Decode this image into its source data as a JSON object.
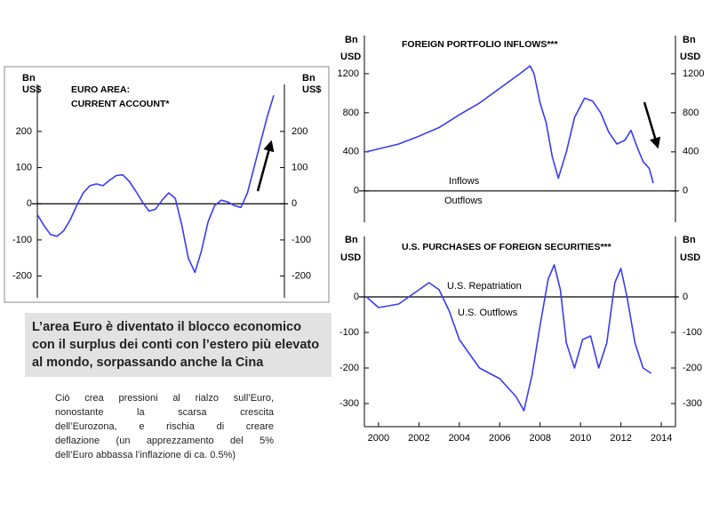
{
  "chart_data": [
    {
      "type": "line",
      "title": "EURO AREA:",
      "subtitle": "CURRENT ACCOUNT*",
      "y_unit": [
        "Bn",
        "US$"
      ],
      "categories": [
        null,
        null,
        null,
        null,
        null,
        null,
        null,
        null,
        null,
        null,
        null,
        null,
        null,
        null,
        null,
        null,
        null,
        null,
        null,
        null,
        null,
        null,
        null,
        null,
        null,
        null,
        null,
        null,
        null,
        null,
        null,
        null,
        null,
        null,
        null,
        null,
        null
      ],
      "values": [
        -30,
        -60,
        -85,
        -90,
        -75,
        -45,
        -5,
        30,
        50,
        55,
        50,
        65,
        78,
        80,
        62,
        35,
        5,
        -20,
        -15,
        10,
        30,
        15,
        -60,
        -150,
        -190,
        -130,
        -50,
        -5,
        10,
        5,
        -5,
        -10,
        30,
        100,
        170,
        240,
        300
      ],
      "color": "#3b3bf2",
      "ylim": [
        -260,
        330
      ],
      "yticks": [
        -200,
        -100,
        0,
        100,
        200
      ]
    },
    {
      "type": "line",
      "title": "FOREIGN PORTFOLIO INFLOWS***",
      "y_unit": [
        "Bn",
        "USD"
      ],
      "annotations": [
        "Inflows",
        "Outflows"
      ],
      "x": [
        1999.4,
        2000,
        2001,
        2002,
        2003,
        2004,
        2005,
        2006,
        2007,
        2007.5,
        2007.7,
        2008,
        2008.3,
        2008.6,
        2008.9,
        2009.3,
        2009.7,
        2010.2,
        2010.6,
        2011,
        2011.4,
        2011.8,
        2012.2,
        2012.5,
        2012.8,
        2013.1,
        2013.4,
        2013.6
      ],
      "values": [
        400,
        430,
        480,
        560,
        650,
        780,
        900,
        1050,
        1200,
        1280,
        1200,
        900,
        700,
        350,
        130,
        400,
        750,
        950,
        920,
        800,
        600,
        480,
        520,
        620,
        450,
        300,
        230,
        80
      ],
      "color": "#3b3bf2",
      "xlim": [
        1999.3,
        2014.7
      ],
      "ylim": [
        -320,
        1590
      ],
      "yticks": [
        0,
        400,
        800,
        1200
      ]
    },
    {
      "type": "line",
      "title": "U.S. PURCHASES OF FOREIGN SECURITIES***",
      "y_unit": [
        "Bn",
        "USD"
      ],
      "annotations": [
        "U.S. Repatriation",
        "U.S. Outflows"
      ],
      "x": [
        1999.4,
        2000,
        2001,
        2002,
        2002.5,
        2003,
        2003.5,
        2004,
        2005,
        2006,
        2006.8,
        2007.2,
        2007.6,
        2008,
        2008.4,
        2008.7,
        2009,
        2009.3,
        2009.7,
        2010.1,
        2010.5,
        2010.9,
        2011.3,
        2011.7,
        2012,
        2012.3,
        2012.7,
        2013.1,
        2013.5
      ],
      "values": [
        0,
        -30,
        -20,
        20,
        40,
        20,
        -40,
        -120,
        -200,
        -230,
        -280,
        -320,
        -220,
        -80,
        50,
        90,
        20,
        -130,
        -200,
        -120,
        -110,
        -200,
        -130,
        40,
        80,
        0,
        -130,
        -200,
        -215
      ],
      "color": "#3b3bf2",
      "xlim": [
        1999.3,
        2014.7
      ],
      "xticks": [
        2000,
        2002,
        2004,
        2006,
        2008,
        2010,
        2012,
        2014
      ],
      "ylim": [
        -365,
        170
      ],
      "yticks": [
        -300,
        -200,
        -100,
        0
      ]
    }
  ],
  "callout": {
    "lines": [
      "L’area Euro è diventato il blocco economico",
      "con il surplus dei conti con l’estero più elevato",
      "al mondo, sorpassando anche la Cina"
    ]
  },
  "note": {
    "lines": [
      "Ciò crea pressioni al rialzo sull’Euro,",
      "nonostante la scarsa crescita",
      "dell’Eurozona, e rischia di creare",
      "deflazione (un apprezzamento del 5%",
      "dell’Euro abbassa l’inflazione di ca. 0.5%)"
    ]
  }
}
